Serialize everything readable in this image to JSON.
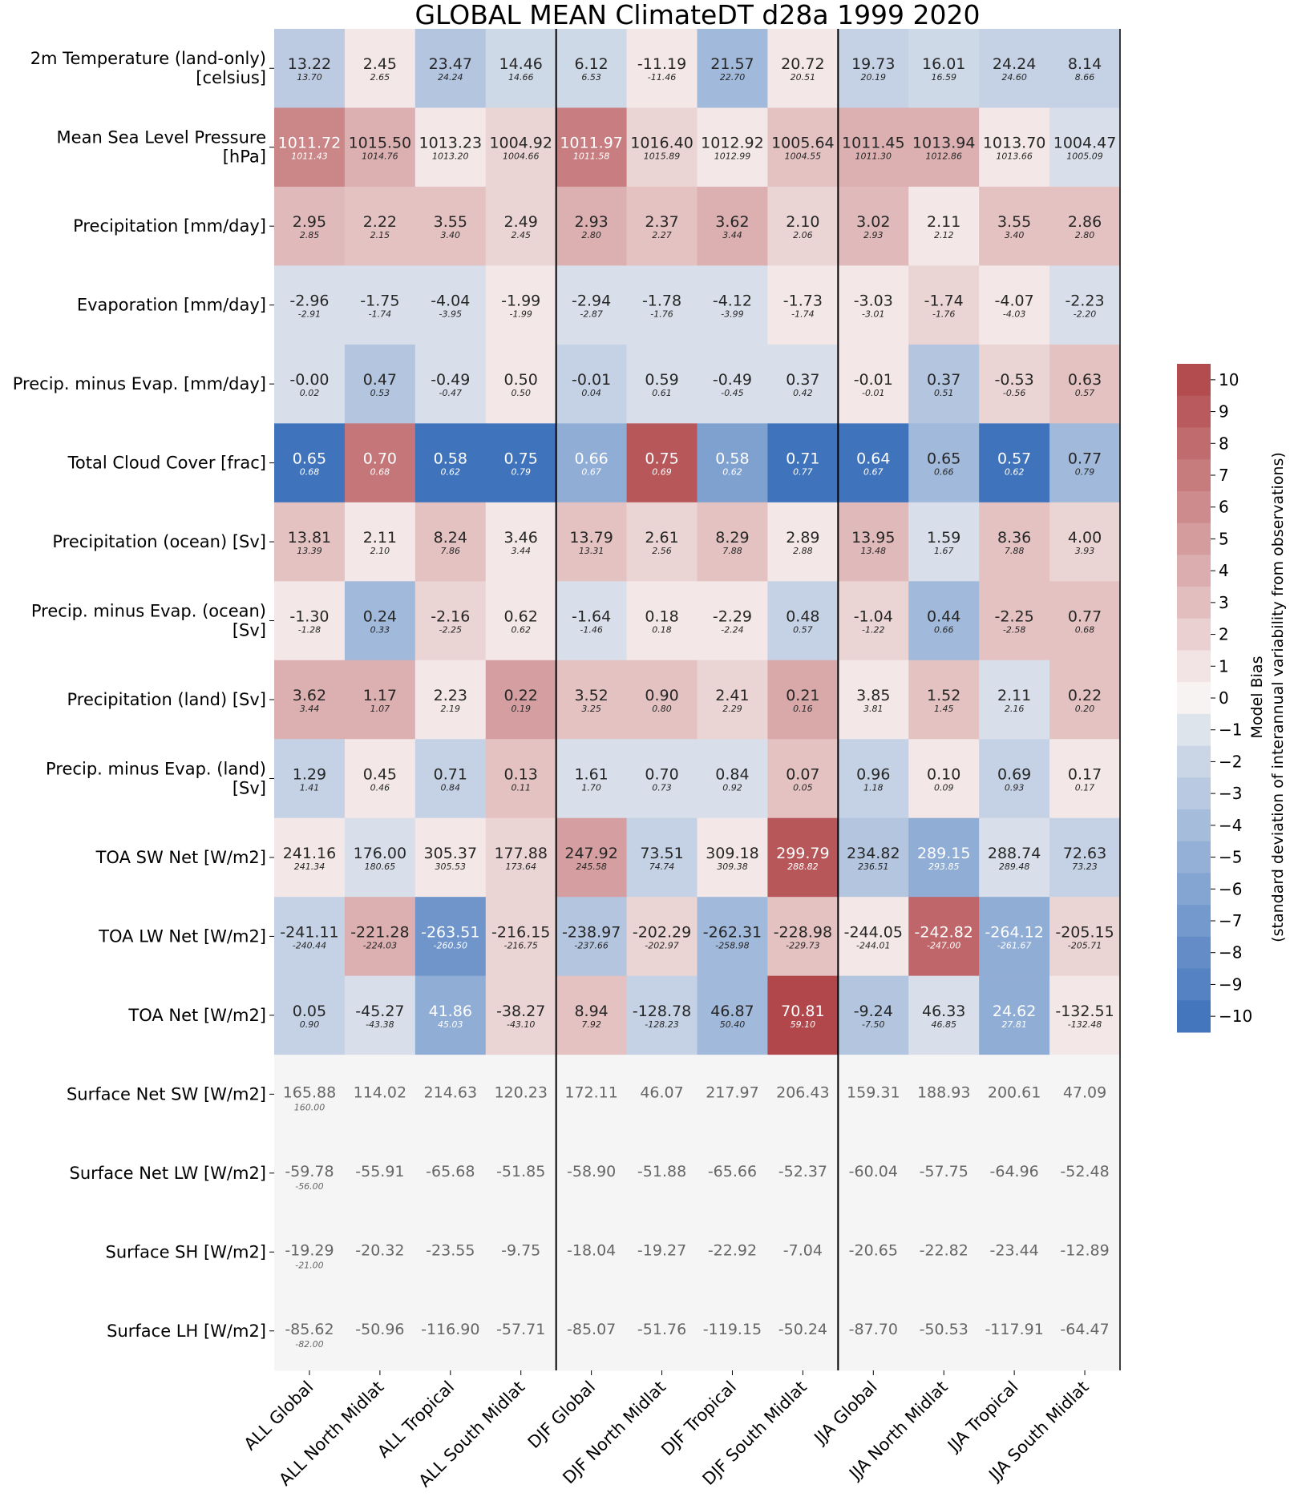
{
  "chart_data": {
    "type": "heatmap",
    "title": "GLOBAL MEAN ClimateDT d28a 1999 2020",
    "columns": [
      "ALL Global",
      "ALL North Midlat",
      "ALL Tropical",
      "ALL South Midlat",
      "DJF Global",
      "DJF North Midlat",
      "DJF Tropical",
      "DJF South Midlat",
      "JJA Global",
      "JJA North Midlat",
      "JJA Tropical",
      "JJA South Midlat"
    ],
    "group_separators_after_column": [
      4,
      8
    ],
    "rows": [
      {
        "label": "2m Temperature (land-only)\n[celsius]",
        "values": [
          "13.22",
          "2.45",
          "23.47",
          "14.46",
          "6.12",
          "-11.19",
          "21.57",
          "20.72",
          "19.73",
          "16.01",
          "24.24",
          "8.14"
        ],
        "refs": [
          "13.70",
          "2.65",
          "24.24",
          "14.66",
          "6.53",
          "-11.46",
          "22.70",
          "20.51",
          "20.19",
          "16.59",
          "24.60",
          "8.66"
        ],
        "bias": [
          -2.5,
          0.5,
          -3,
          -1.5,
          -1.5,
          0.5,
          -4,
          0.5,
          -2,
          -1.5,
          -2,
          -2
        ]
      },
      {
        "label": "Mean Sea Level Pressure\n[hPa]",
        "values": [
          "1011.72",
          "1015.50",
          "1013.23",
          "1004.92",
          "1011.97",
          "1016.40",
          "1012.92",
          "1005.64",
          "1011.45",
          "1013.94",
          "1013.70",
          "1004.47"
        ],
        "refs": [
          "1011.43",
          "1014.76",
          "1013.20",
          "1004.66",
          "1011.58",
          "1015.89",
          "1012.99",
          "1004.55",
          "1011.30",
          "1012.86",
          "1013.66",
          "1005.09"
        ],
        "bias": [
          6,
          3.5,
          0.5,
          1.5,
          6.5,
          1.5,
          0.5,
          2.5,
          3.5,
          3.5,
          0.5,
          -1
        ]
      },
      {
        "label": "Precipitation [mm/day]",
        "values": [
          "2.95",
          "2.22",
          "3.55",
          "2.49",
          "2.93",
          "2.37",
          "3.62",
          "2.10",
          "3.02",
          "2.11",
          "3.55",
          "2.86"
        ],
        "refs": [
          "2.85",
          "2.15",
          "3.40",
          "2.45",
          "2.80",
          "2.27",
          "3.44",
          "2.06",
          "2.93",
          "2.12",
          "3.40",
          "2.80"
        ],
        "bias": [
          3,
          2.5,
          2.5,
          1.5,
          3.5,
          2.5,
          3.5,
          1.5,
          3,
          0.5,
          2.5,
          2.5
        ]
      },
      {
        "label": "Evaporation [mm/day]",
        "values": [
          "-2.96",
          "-1.75",
          "-4.04",
          "-1.99",
          "-2.94",
          "-1.78",
          "-4.12",
          "-1.73",
          "-3.03",
          "-1.74",
          "-4.07",
          "-2.23"
        ],
        "refs": [
          "-2.91",
          "-1.74",
          "-3.95",
          "-1.99",
          "-2.87",
          "-1.76",
          "-3.99",
          "-1.74",
          "-3.01",
          "-1.76",
          "-4.03",
          "-2.20"
        ],
        "bias": [
          -1,
          -1,
          -1,
          0.5,
          -1,
          -1,
          -1,
          0.5,
          0.5,
          1.5,
          0.5,
          -1
        ]
      },
      {
        "label": "Precip. minus Evap. [mm/day]",
        "values": [
          "-0.00",
          "0.47",
          "-0.49",
          "0.50",
          "-0.01",
          "0.59",
          "-0.49",
          "0.37",
          "-0.01",
          "0.37",
          "-0.53",
          "0.63"
        ],
        "refs": [
          "0.02",
          "0.53",
          "-0.47",
          "0.50",
          "0.04",
          "0.61",
          "-0.45",
          "0.42",
          "-0.01",
          "0.51",
          "-0.56",
          "0.57"
        ],
        "bias": [
          -1,
          -3,
          -1,
          0.5,
          -2,
          -1,
          -1,
          -1,
          0.5,
          -3,
          1.5,
          2.5
        ]
      },
      {
        "label": "Total Cloud Cover [frac]",
        "values": [
          "0.65",
          "0.70",
          "0.58",
          "0.75",
          "0.66",
          "0.75",
          "0.58",
          "0.71",
          "0.64",
          "0.65",
          "0.57",
          "0.77"
        ],
        "refs": [
          "0.68",
          "0.68",
          "0.62",
          "0.79",
          "0.67",
          "0.69",
          "0.62",
          "0.77",
          "0.67",
          "0.66",
          "0.62",
          "0.79"
        ],
        "bias": [
          -10,
          7,
          -10,
          -10,
          -5,
          9,
          -6,
          -10,
          -10,
          -4,
          -10,
          -4
        ]
      },
      {
        "label": "Precipitation (ocean) [Sv]",
        "values": [
          "13.81",
          "2.11",
          "8.24",
          "3.46",
          "13.79",
          "2.61",
          "8.29",
          "2.89",
          "13.95",
          "1.59",
          "8.36",
          "4.00"
        ],
        "refs": [
          "13.39",
          "2.10",
          "7.86",
          "3.44",
          "13.31",
          "2.56",
          "7.88",
          "2.88",
          "13.48",
          "1.67",
          "7.88",
          "3.93"
        ],
        "bias": [
          2.5,
          0.5,
          2.5,
          0.5,
          2.5,
          1.5,
          2.5,
          0.5,
          3,
          -1,
          2.5,
          1.5
        ]
      },
      {
        "label": "Precip. minus Evap. (ocean)\n[Sv]",
        "values": [
          "-1.30",
          "0.24",
          "-2.16",
          "0.62",
          "-1.64",
          "0.18",
          "-2.29",
          "0.48",
          "-1.04",
          "0.44",
          "-2.25",
          "0.77"
        ],
        "refs": [
          "-1.28",
          "0.33",
          "-2.25",
          "0.62",
          "-1.46",
          "0.18",
          "-2.24",
          "0.57",
          "-1.22",
          "0.66",
          "-2.58",
          "0.68"
        ],
        "bias": [
          0.5,
          -4,
          1.5,
          0.5,
          -1,
          0.5,
          0.5,
          -2,
          1.5,
          -4,
          2.5,
          2.5
        ]
      },
      {
        "label": "Precipitation (land) [Sv]",
        "values": [
          "3.62",
          "1.17",
          "2.23",
          "0.22",
          "3.52",
          "0.90",
          "2.41",
          "0.21",
          "3.85",
          "1.52",
          "2.11",
          "0.22"
        ],
        "refs": [
          "3.44",
          "1.07",
          "2.19",
          "0.19",
          "3.25",
          "0.80",
          "2.29",
          "0.16",
          "3.81",
          "1.45",
          "2.16",
          "0.20"
        ],
        "bias": [
          3.5,
          3.5,
          0.5,
          4.5,
          2.5,
          2.5,
          1.5,
          4,
          0.5,
          2.5,
          -1,
          2.5
        ]
      },
      {
        "label": "Precip. minus Evap. (land)\n[Sv]",
        "values": [
          "1.29",
          "0.45",
          "0.71",
          "0.13",
          "1.61",
          "0.70",
          "0.84",
          "0.07",
          "0.96",
          "0.10",
          "0.69",
          "0.17"
        ],
        "refs": [
          "1.41",
          "0.46",
          "0.84",
          "0.11",
          "1.70",
          "0.73",
          "0.92",
          "0.05",
          "1.18",
          "0.09",
          "0.93",
          "0.17"
        ],
        "bias": [
          -2,
          0.5,
          -2,
          2.5,
          -1,
          -1,
          -1,
          2.5,
          -2,
          0.5,
          -2,
          0.5
        ]
      },
      {
        "label": "TOA SW Net [W/m2]",
        "values": [
          "241.16",
          "176.00",
          "305.37",
          "177.88",
          "247.92",
          "73.51",
          "309.18",
          "299.79",
          "234.82",
          "289.15",
          "288.74",
          "72.63"
        ],
        "refs": [
          "241.34",
          "180.65",
          "305.53",
          "173.64",
          "245.58",
          "74.74",
          "309.38",
          "288.82",
          "236.51",
          "293.85",
          "289.48",
          "73.23"
        ],
        "bias": [
          0.5,
          -1,
          0.5,
          1.5,
          4.5,
          -2,
          0.5,
          9,
          -3,
          -5,
          -1,
          -2
        ]
      },
      {
        "label": "TOA LW Net [W/m2]",
        "values": [
          "-241.11",
          "-221.28",
          "-263.51",
          "-216.15",
          "-238.97",
          "-202.29",
          "-262.31",
          "-228.98",
          "-244.05",
          "-242.82",
          "-264.12",
          "-205.15"
        ],
        "refs": [
          "-240.44",
          "-224.03",
          "-260.50",
          "-216.75",
          "-237.66",
          "-202.97",
          "-258.98",
          "-229.73",
          "-244.01",
          "-247.00",
          "-261.67",
          "-205.71"
        ],
        "bias": [
          -2,
          3.5,
          -7,
          1.5,
          -3,
          1.5,
          -4,
          2.5,
          0.5,
          8,
          -5,
          1.5
        ]
      },
      {
        "label": "TOA Net [W/m2]",
        "values": [
          "0.05",
          "-45.27",
          "41.86",
          "-38.27",
          "8.94",
          "-128.78",
          "46.87",
          "70.81",
          "-9.24",
          "46.33",
          "24.62",
          "-132.51"
        ],
        "refs": [
          "0.90",
          "-43.38",
          "45.03",
          "-43.10",
          "7.92",
          "-128.23",
          "50.40",
          "59.10",
          "-7.50",
          "46.85",
          "27.81",
          "-132.48"
        ],
        "bias": [
          -2,
          -1,
          -5,
          1.5,
          2.5,
          -2,
          -4,
          10,
          -3,
          -1,
          -5,
          0.5
        ]
      },
      {
        "label": "Surface Net SW [W/m2]",
        "values": [
          "165.88",
          "114.02",
          "214.63",
          "120.23",
          "172.11",
          "46.07",
          "217.97",
          "206.43",
          "159.31",
          "188.93",
          "200.61",
          "47.09"
        ],
        "refs": [
          "160.00",
          null,
          null,
          null,
          null,
          null,
          null,
          null,
          null,
          null,
          null,
          null
        ],
        "bias": null
      },
      {
        "label": "Surface Net LW [W/m2]",
        "values": [
          "-59.78",
          "-55.91",
          "-65.68",
          "-51.85",
          "-58.90",
          "-51.88",
          "-65.66",
          "-52.37",
          "-60.04",
          "-57.75",
          "-64.96",
          "-52.48"
        ],
        "refs": [
          "-56.00",
          null,
          null,
          null,
          null,
          null,
          null,
          null,
          null,
          null,
          null,
          null
        ],
        "bias": null
      },
      {
        "label": "Surface SH [W/m2]",
        "values": [
          "-19.29",
          "-20.32",
          "-23.55",
          "-9.75",
          "-18.04",
          "-19.27",
          "-22.92",
          "-7.04",
          "-20.65",
          "-22.82",
          "-23.44",
          "-12.89"
        ],
        "refs": [
          "-21.00",
          null,
          null,
          null,
          null,
          null,
          null,
          null,
          null,
          null,
          null,
          null
        ],
        "bias": null
      },
      {
        "label": "Surface LH [W/m2]",
        "values": [
          "-85.62",
          "-50.96",
          "-116.90",
          "-57.71",
          "-85.07",
          "-51.76",
          "-119.15",
          "-50.24",
          "-87.70",
          "-50.53",
          "-117.91",
          "-64.47"
        ],
        "refs": [
          "-82.00",
          null,
          null,
          null,
          null,
          null,
          null,
          null,
          null,
          null,
          null,
          null
        ],
        "bias": null
      }
    ],
    "colorbar": {
      "label": "Model Bias",
      "sublabel": "(standard deviation of interannual variability from observations)",
      "ticks": [
        10,
        9,
        8,
        7,
        6,
        5,
        4,
        3,
        2,
        1,
        0,
        -1,
        -2,
        -3,
        -4,
        -5,
        -6,
        -7,
        -8,
        -9,
        -10
      ],
      "range": [
        -10,
        10
      ],
      "placement": "right"
    },
    "colors": {
      "negative_end": "#3f73bc",
      "negative_start": "#eeeff1",
      "positive_start": "#f8f3f3",
      "positive_end": "#b1474a",
      "no_data": "#f5f5f5",
      "no_data_text": "#666666"
    }
  }
}
